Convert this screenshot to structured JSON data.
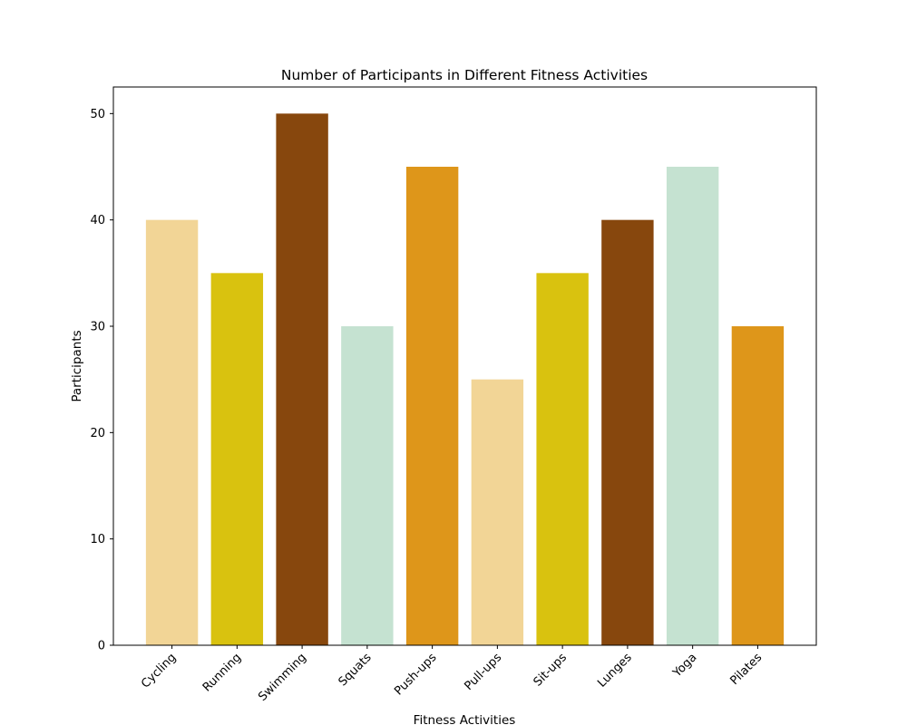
{
  "chart_data": {
    "type": "bar",
    "title": "Number of Participants in Different Fitness Activities",
    "xlabel": "Fitness Activities",
    "ylabel": "Participants",
    "categories": [
      "Cycling",
      "Running",
      "Swimming",
      "Squats",
      "Push-ups",
      "Pull-ups",
      "Sit-ups",
      "Lunges",
      "Yoga",
      "Pilates"
    ],
    "values": [
      40,
      35,
      50,
      30,
      45,
      25,
      35,
      40,
      45,
      30
    ],
    "colors": [
      "#f2d596",
      "#d9c20f",
      "#87470d",
      "#c5e2d1",
      "#de961a",
      "#f2d596",
      "#d9c20f",
      "#87470d",
      "#c5e2d1",
      "#de961a"
    ],
    "ylim": [
      0,
      52.5
    ],
    "yticks": [
      0,
      10,
      20,
      30,
      40,
      50
    ],
    "grid": false,
    "legend": "none"
  }
}
